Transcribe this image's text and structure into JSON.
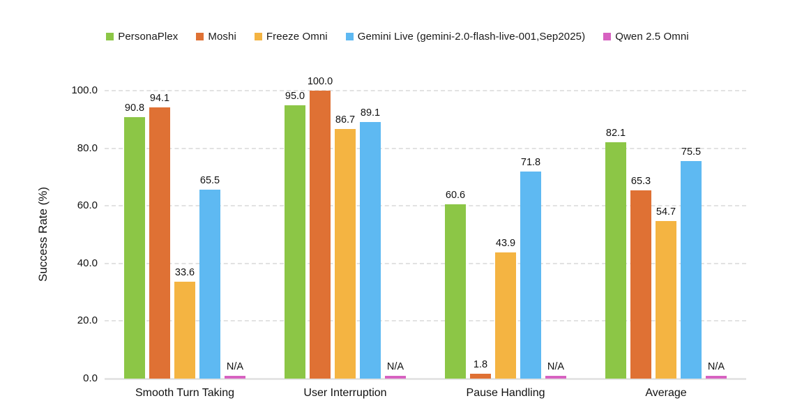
{
  "chart_data": {
    "type": "bar",
    "title": "",
    "xlabel": "",
    "ylabel": "Success Rate (%)",
    "ylim": [
      0,
      100
    ],
    "yticks": [
      0,
      20,
      40,
      60,
      80,
      100
    ],
    "ytick_labels": [
      "0.0",
      "20.0",
      "40.0",
      "60.0",
      "80.0",
      "100.0"
    ],
    "grid": "horizontal-dashed",
    "legend_position": "top-center",
    "value_labels": true,
    "na_label": "N/A",
    "na_stub_height": 1.0,
    "categories": [
      "Smooth Turn Taking",
      "User Interruption",
      "Pause Handling",
      "Average"
    ],
    "series": [
      {
        "name": "PersonaPlex",
        "color": "#8CC646",
        "values": [
          90.8,
          95.0,
          60.6,
          82.1
        ]
      },
      {
        "name": "Moshi",
        "color": "#DF7134",
        "values": [
          94.1,
          100.0,
          1.8,
          65.3
        ]
      },
      {
        "name": "Freeze Omni",
        "color": "#F4B442",
        "values": [
          33.6,
          86.7,
          43.9,
          54.7
        ]
      },
      {
        "name": "Gemini Live (gemini-2.0-flash-live-001,Sep2025)",
        "color": "#5EB9F2",
        "values": [
          65.5,
          89.1,
          71.8,
          75.5
        ]
      },
      {
        "name": "Qwen 2.5 Omni",
        "color": "#D762C1",
        "values": [
          null,
          null,
          null,
          null
        ]
      }
    ]
  }
}
